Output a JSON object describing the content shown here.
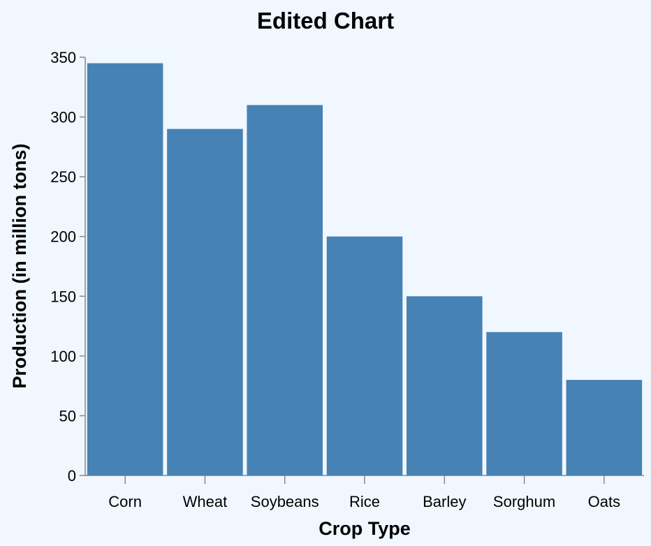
{
  "chart_data": {
    "type": "bar",
    "title": "Edited Chart",
    "xlabel": "Crop Type",
    "ylabel": "Production (in million tons)",
    "categories": [
      "Corn",
      "Wheat",
      "Soybeans",
      "Rice",
      "Barley",
      "Sorghum",
      "Oats"
    ],
    "values": [
      345,
      290,
      310,
      200,
      150,
      120,
      80
    ],
    "ylim": [
      0,
      350
    ],
    "yticks": [
      0,
      50,
      100,
      150,
      200,
      250,
      300,
      350
    ],
    "grid": false,
    "bar_color": "#4682b4",
    "background_color": "#f0f7ff"
  }
}
